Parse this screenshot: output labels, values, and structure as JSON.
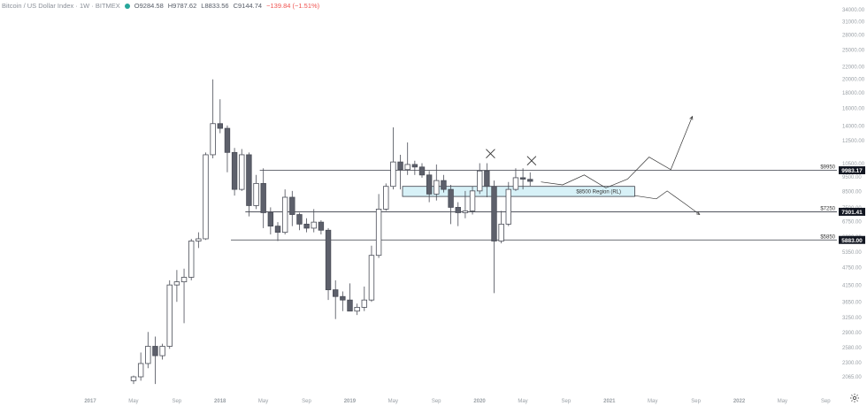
{
  "legend": {
    "symbol": "Bitcoin / US Dollar Index · 1W · BITMEX",
    "open": "O9284.58",
    "high": "H9787.62",
    "low": "L8833.56",
    "close": "C9144.74",
    "change": "−139.84 (−1.51%)"
  },
  "colors": {
    "bear_body": "#5d606b",
    "bull_body": "#ffffff",
    "outline": "#4a4d57",
    "grid_text": "#9aa0a6",
    "zone_fill": "#d7f1f7",
    "zone_stroke": "#3a3d47",
    "line": "#3a3d47"
  },
  "chart_data": {
    "type": "candlestick",
    "y_scale": "log",
    "ylim": [
      1900,
      35000
    ],
    "y_ticks": [
      "34000.00",
      "31000.00",
      "28000.00",
      "25000.00",
      "22000.00",
      "20000.00",
      "18000.00",
      "16000.00",
      "14000.00",
      "12500.00",
      "10500.00",
      "9500.00",
      "8500.00",
      "7500.00",
      "6750.00",
      "6000.00",
      "5350.00",
      "4750.00",
      "4150.00",
      "3650.00",
      "3250.00",
      "2900.00",
      "2580.00",
      "2300.00",
      "2065.00"
    ],
    "x_ticks": [
      "2017",
      "May",
      "Sep",
      "2018",
      "May",
      "Sep",
      "2019",
      "May",
      "Sep",
      "2020",
      "May",
      "Sep",
      "2021",
      "May",
      "Sep",
      "2022",
      "May",
      "Sep"
    ],
    "levels": [
      {
        "label": "$9950",
        "value": 9950,
        "badge": "9983.17"
      },
      {
        "label": "$7250",
        "value": 7250,
        "badge": "7301.41"
      },
      {
        "label": "$5850",
        "value": 5850,
        "badge": "5883.00"
      }
    ],
    "zone": {
      "label": "$8500 Region (RL)",
      "low": 8150,
      "high": 8800
    },
    "candles": [
      [
        2000,
        2080,
        1950,
        2060
      ],
      [
        2060,
        2480,
        2000,
        2280
      ],
      [
        2280,
        2900,
        2200,
        2600
      ],
      [
        2600,
        2800,
        1950,
        2420
      ],
      [
        2420,
        2650,
        2350,
        2600
      ],
      [
        2600,
        4300,
        2550,
        4150
      ],
      [
        4150,
        4650,
        3650,
        4250
      ],
      [
        4250,
        4700,
        3100,
        4400
      ],
      [
        4400,
        5900,
        4300,
        5800
      ],
      [
        5800,
        6200,
        5500,
        5900
      ],
      [
        5900,
        11400,
        5850,
        11200
      ],
      [
        11200,
        19900,
        10900,
        14200
      ],
      [
        14200,
        17100,
        13200,
        13700
      ],
      [
        13700,
        14000,
        9800,
        11400
      ],
      [
        11400,
        11800,
        8200,
        8600
      ],
      [
        8600,
        11700,
        8500,
        11200
      ],
      [
        11200,
        11400,
        7000,
        7600
      ],
      [
        7600,
        9600,
        7400,
        9000
      ],
      [
        9000,
        10100,
        6400,
        7200
      ],
      [
        7200,
        7500,
        6100,
        6500
      ],
      [
        6500,
        6700,
        5800,
        6200
      ],
      [
        6200,
        8600,
        6100,
        8100
      ],
      [
        8100,
        8500,
        6500,
        7100
      ],
      [
        7100,
        7200,
        6300,
        6600
      ],
      [
        6600,
        6900,
        6200,
        6400
      ],
      [
        6400,
        7400,
        6200,
        6700
      ],
      [
        6700,
        6800,
        6100,
        6300
      ],
      [
        6300,
        6400,
        3700,
        4000
      ],
      [
        4000,
        4300,
        3200,
        3800
      ],
      [
        3800,
        3950,
        3400,
        3700
      ],
      [
        3700,
        4200,
        3500,
        3400
      ],
      [
        3400,
        3600,
        3300,
        3500
      ],
      [
        3500,
        4100,
        3400,
        3700
      ],
      [
        3700,
        5600,
        3650,
        5200
      ],
      [
        5200,
        8300,
        5100,
        7400
      ],
      [
        7400,
        9000,
        7300,
        8800
      ],
      [
        8800,
        13800,
        8600,
        10600
      ],
      [
        10600,
        11200,
        8600,
        10000
      ],
      [
        10000,
        12300,
        9600,
        10400
      ],
      [
        10400,
        10700,
        9600,
        10200
      ],
      [
        10200,
        10500,
        9400,
        9600
      ],
      [
        9600,
        9900,
        7800,
        8300
      ],
      [
        8300,
        10400,
        7900,
        9200
      ],
      [
        9200,
        9600,
        8400,
        8600
      ],
      [
        8600,
        8900,
        6600,
        7500
      ],
      [
        7500,
        7800,
        6500,
        7200
      ],
      [
        7200,
        8500,
        6900,
        7300
      ],
      [
        7300,
        8800,
        7100,
        8500
      ],
      [
        8500,
        10500,
        8300,
        9900
      ],
      [
        9900,
        10500,
        8100,
        8800
      ],
      [
        8800,
        9200,
        3900,
        5800
      ],
      [
        5800,
        7300,
        5700,
        6600
      ],
      [
        6600,
        9100,
        6500,
        8600
      ],
      [
        8600,
        10100,
        8500,
        9400
      ],
      [
        9400,
        10100,
        8600,
        9300
      ],
      [
        9284.58,
        9787.62,
        8833.56,
        9144.74
      ]
    ],
    "projections": [
      [
        [
          9300,
          9100
        ],
        [
          9350,
          8900
        ],
        [
          9380,
          9600
        ],
        [
          9420,
          8700
        ],
        [
          9460,
          9300
        ],
        [
          9520,
          11000
        ],
        [
          9560,
          10000
        ],
        [
          9600,
          15000
        ]
      ],
      [
        [
          8800,
          8200
        ],
        [
          8840,
          8000
        ],
        [
          8900,
          8500
        ],
        [
          8960,
          7700
        ],
        [
          9020,
          7100
        ]
      ]
    ]
  }
}
